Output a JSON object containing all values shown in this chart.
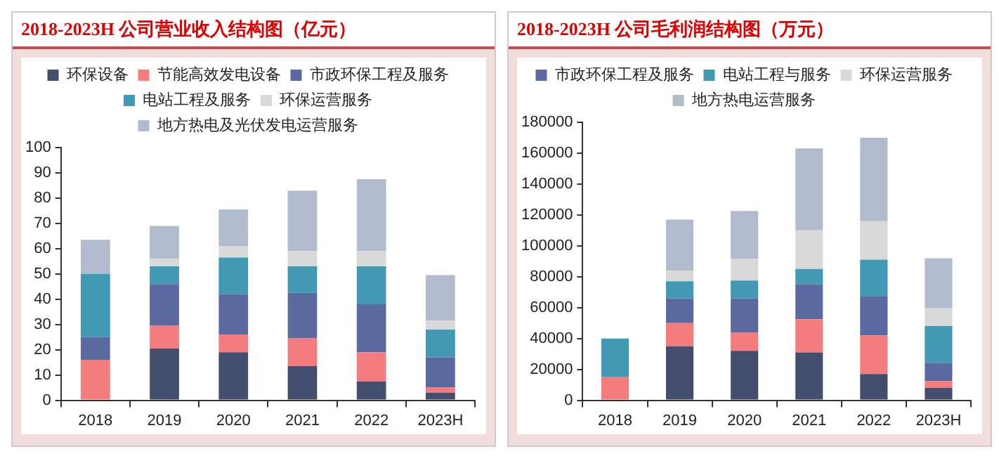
{
  "chart_data": [
    {
      "type": "bar",
      "title": "2018-2023H 公司营业收入结构图（亿元）",
      "categories": [
        "2018",
        "2019",
        "2020",
        "2021",
        "2022",
        "2023H"
      ],
      "stacked": true,
      "legend": "top",
      "ylim": [
        0,
        100
      ],
      "yticks": [
        0,
        10,
        20,
        30,
        40,
        50,
        60,
        70,
        80,
        90,
        100
      ],
      "series": [
        {
          "name": "环保设备",
          "color": "#434e6e",
          "values": [
            0,
            20.5,
            19,
            13.5,
            7.5,
            3
          ]
        },
        {
          "name": "节能高效发电设备",
          "color": "#f47c7c",
          "values": [
            16,
            9,
            7,
            11,
            11.5,
            2
          ]
        },
        {
          "name": "市政环保工程及服务",
          "color": "#5a6aa0",
          "values": [
            9,
            16.5,
            16,
            18,
            19,
            12
          ]
        },
        {
          "name": "电站工程及服务",
          "color": "#4299b4",
          "values": [
            25,
            7,
            14.5,
            10.5,
            15,
            11
          ]
        },
        {
          "name": "环保运营服务",
          "color": "#d9d9d9",
          "values": [
            0,
            3,
            4.5,
            6,
            6,
            3.5
          ]
        },
        {
          "name": "地方热电及光伏发电运营服务",
          "color": "#b0bccd",
          "values": [
            13.5,
            13,
            14.5,
            24,
            28.5,
            18
          ]
        }
      ]
    },
    {
      "type": "bar",
      "title": "2018-2023H 公司毛利润结构图（万元）",
      "categories": [
        "2018",
        "2019",
        "2020",
        "2021",
        "2022",
        "2023H"
      ],
      "stacked": true,
      "legend": "top",
      "ylim": [
        0,
        180000
      ],
      "yticks": [
        0,
        20000,
        40000,
        60000,
        80000,
        100000,
        120000,
        140000,
        160000,
        180000
      ],
      "series": [
        {
          "color": "#434e6e",
          "values": [
            0,
            35000,
            32000,
            31000,
            17000,
            8000
          ]
        },
        {
          "color": "#f47c7c",
          "values": [
            15000,
            15000,
            12000,
            21500,
            25000,
            4500
          ]
        },
        {
          "name": "市政环保工程及服务",
          "color": "#5a6aa0",
          "values": [
            0,
            16000,
            22000,
            22500,
            25500,
            11500
          ]
        },
        {
          "name": "电站工程与服务",
          "color": "#4299b4",
          "values": [
            25000,
            11000,
            11500,
            10000,
            23500,
            24000
          ]
        },
        {
          "name": "环保运营服务",
          "color": "#d9d9d9",
          "values": [
            0,
            7000,
            14000,
            25000,
            25000,
            11500
          ]
        },
        {
          "name": "地方热电运营服务",
          "color": "#b0bccd",
          "values": [
            0,
            33000,
            31000,
            53000,
            54000,
            32500
          ]
        }
      ]
    }
  ]
}
